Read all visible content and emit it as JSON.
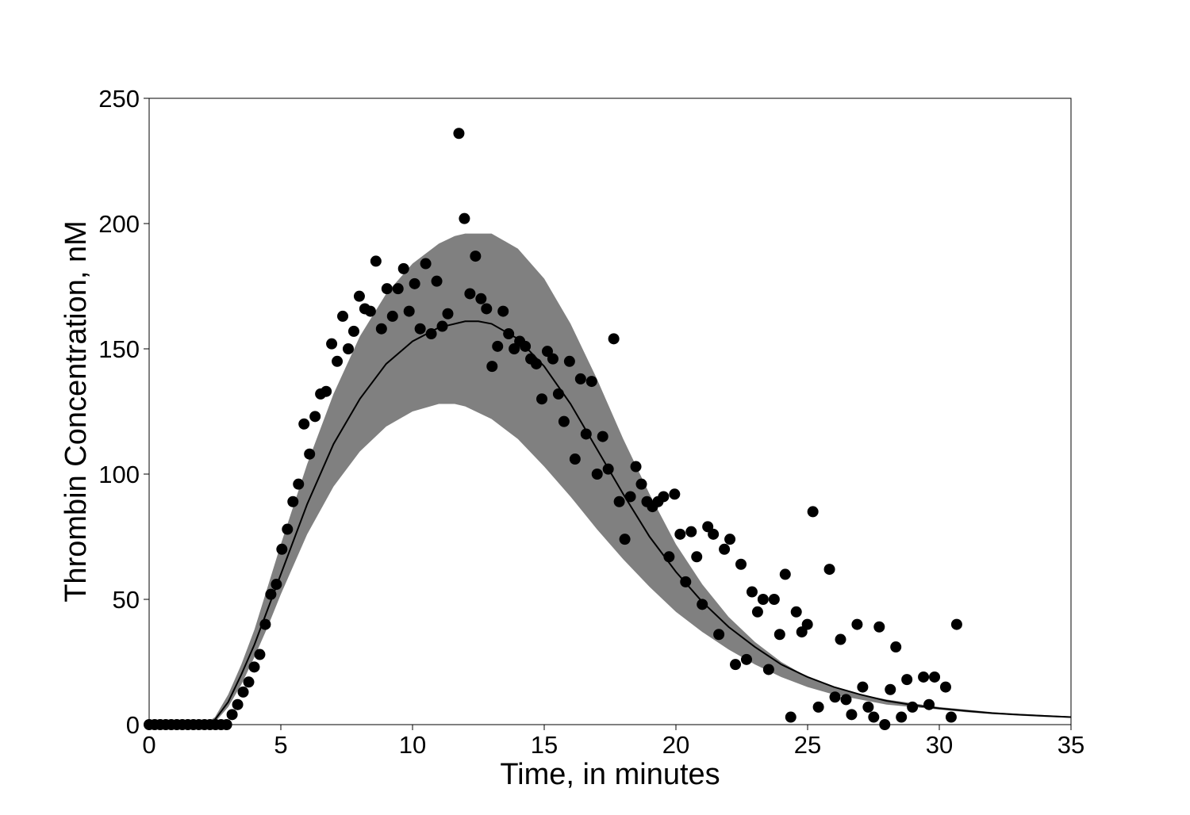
{
  "chart_data": {
    "type": "scatter",
    "title": "",
    "xlabel": "Time, in minutes",
    "ylabel": "Thrombin Concentration, nM",
    "xlim": [
      0,
      35
    ],
    "ylim": [
      0,
      250
    ],
    "xticks": [
      "0",
      "5",
      "10",
      "15",
      "20",
      "25",
      "30",
      "35"
    ],
    "yticks": [
      "0",
      "50",
      "100",
      "150",
      "200",
      "250"
    ],
    "grid": false,
    "legend": "none",
    "colors": {
      "band": "#808080",
      "line": "#000000",
      "points": "#000000"
    },
    "band": {
      "x": [
        0,
        2.1,
        2.5,
        3,
        3.5,
        4,
        4.5,
        5,
        6,
        7,
        8,
        9,
        10,
        11,
        11.6,
        12,
        13,
        14,
        15,
        16,
        17,
        18,
        19,
        20,
        21,
        22,
        23,
        24,
        25,
        26,
        27,
        28,
        29,
        30,
        31,
        32,
        33,
        34,
        35
      ],
      "upper": [
        0,
        0,
        3,
        12,
        24,
        38,
        55,
        72,
        104,
        132,
        155,
        172,
        184,
        192,
        195,
        196,
        196,
        190,
        178,
        160,
        138,
        114,
        92,
        72,
        56,
        43,
        33,
        25,
        19,
        15,
        12,
        10,
        8.5,
        7,
        6,
        5,
        4.3,
        3.8,
        3.3
      ],
      "lower": [
        0,
        0,
        1,
        7,
        16,
        27,
        39,
        52,
        76,
        95,
        109,
        119,
        125,
        128,
        128,
        127,
        122,
        114,
        103,
        91,
        78,
        66,
        55,
        45,
        37,
        30,
        24,
        19,
        15,
        12,
        10,
        8,
        7,
        6,
        5,
        4.2,
        3.6,
        3.1,
        2.7
      ]
    },
    "fit_line": {
      "x": [
        0,
        2.1,
        2.5,
        3,
        3.5,
        4,
        4.5,
        5,
        6,
        7,
        8,
        9,
        10,
        11,
        12,
        12.5,
        13,
        14,
        15,
        16,
        17,
        18,
        19,
        20,
        21,
        22,
        23,
        24,
        25,
        26,
        27,
        28,
        29,
        30,
        31,
        32,
        33,
        34,
        35
      ],
      "y": [
        0,
        0,
        2,
        9,
        20,
        32,
        46,
        60,
        88,
        112,
        130,
        144,
        153,
        158.5,
        161,
        161,
        160,
        154,
        143,
        128,
        110,
        92,
        75,
        61,
        49,
        39,
        31,
        24,
        19,
        15,
        12,
        9.5,
        7.8,
        6.5,
        5.5,
        4.6,
        4,
        3.5,
        3
      ]
    },
    "points": [
      [
        0,
        0
      ],
      [
        0.21,
        0
      ],
      [
        0.42,
        0
      ],
      [
        0.63,
        0
      ],
      [
        0.84,
        0
      ],
      [
        1.05,
        0
      ],
      [
        1.26,
        0
      ],
      [
        1.47,
        0
      ],
      [
        1.68,
        0
      ],
      [
        1.89,
        0
      ],
      [
        2.1,
        0
      ],
      [
        2.31,
        0
      ],
      [
        2.52,
        0
      ],
      [
        2.73,
        0
      ],
      [
        2.94,
        0
      ],
      [
        3.15,
        4
      ],
      [
        3.36,
        8
      ],
      [
        3.57,
        13
      ],
      [
        3.78,
        17
      ],
      [
        3.99,
        23
      ],
      [
        4.2,
        28
      ],
      [
        4.41,
        40
      ],
      [
        4.62,
        52
      ],
      [
        4.83,
        56
      ],
      [
        5.04,
        70
      ],
      [
        5.25,
        78
      ],
      [
        5.46,
        89
      ],
      [
        5.67,
        96
      ],
      [
        5.88,
        120
      ],
      [
        6.09,
        108
      ],
      [
        6.3,
        123
      ],
      [
        6.51,
        132
      ],
      [
        6.72,
        133
      ],
      [
        6.93,
        152
      ],
      [
        7.14,
        145
      ],
      [
        7.35,
        163
      ],
      [
        7.56,
        150
      ],
      [
        7.77,
        157
      ],
      [
        7.98,
        171
      ],
      [
        8.19,
        166
      ],
      [
        8.4,
        165
      ],
      [
        8.61,
        185
      ],
      [
        8.82,
        158
      ],
      [
        9.03,
        174
      ],
      [
        9.24,
        163
      ],
      [
        9.45,
        174
      ],
      [
        9.66,
        182
      ],
      [
        9.87,
        165
      ],
      [
        10.08,
        176
      ],
      [
        10.29,
        158
      ],
      [
        10.5,
        184
      ],
      [
        10.71,
        156
      ],
      [
        10.92,
        177
      ],
      [
        11.13,
        159
      ],
      [
        11.34,
        164
      ],
      [
        11.76,
        236
      ],
      [
        11.97,
        202
      ],
      [
        12.18,
        172
      ],
      [
        12.39,
        187
      ],
      [
        12.6,
        170
      ],
      [
        12.81,
        166
      ],
      [
        13.02,
        143
      ],
      [
        13.23,
        151
      ],
      [
        13.44,
        165
      ],
      [
        13.65,
        156
      ],
      [
        13.86,
        150
      ],
      [
        14.07,
        153
      ],
      [
        14.28,
        151
      ],
      [
        14.49,
        146
      ],
      [
        14.7,
        144
      ],
      [
        14.91,
        130
      ],
      [
        15.12,
        149
      ],
      [
        15.33,
        146
      ],
      [
        15.54,
        132
      ],
      [
        15.75,
        121
      ],
      [
        15.96,
        145
      ],
      [
        16.17,
        106
      ],
      [
        16.38,
        138
      ],
      [
        16.59,
        116
      ],
      [
        16.8,
        137
      ],
      [
        17.01,
        100
      ],
      [
        17.22,
        115
      ],
      [
        17.43,
        102
      ],
      [
        17.64,
        154
      ],
      [
        17.85,
        89
      ],
      [
        18.06,
        74
      ],
      [
        18.27,
        91
      ],
      [
        18.48,
        103
      ],
      [
        18.69,
        96
      ],
      [
        18.9,
        89
      ],
      [
        19.11,
        87
      ],
      [
        19.32,
        89
      ],
      [
        19.53,
        91
      ],
      [
        19.74,
        67
      ],
      [
        19.95,
        92
      ],
      [
        20.16,
        76
      ],
      [
        20.37,
        57
      ],
      [
        20.58,
        77
      ],
      [
        20.79,
        67
      ],
      [
        21.0,
        48
      ],
      [
        21.21,
        79
      ],
      [
        21.42,
        76
      ],
      [
        21.63,
        36
      ],
      [
        21.84,
        70
      ],
      [
        22.05,
        74
      ],
      [
        22.26,
        24
      ],
      [
        22.47,
        64
      ],
      [
        22.68,
        26
      ],
      [
        22.89,
        53
      ],
      [
        23.1,
        45
      ],
      [
        23.31,
        50
      ],
      [
        23.52,
        22
      ],
      [
        23.73,
        50
      ],
      [
        23.94,
        36
      ],
      [
        24.15,
        60
      ],
      [
        24.36,
        3
      ],
      [
        24.57,
        45
      ],
      [
        24.78,
        37
      ],
      [
        24.99,
        40
      ],
      [
        25.2,
        85
      ],
      [
        25.41,
        7
      ],
      [
        25.83,
        62
      ],
      [
        26.04,
        11
      ],
      [
        26.25,
        34
      ],
      [
        26.46,
        10
      ],
      [
        26.67,
        4
      ],
      [
        26.88,
        40
      ],
      [
        27.09,
        15
      ],
      [
        27.3,
        7
      ],
      [
        27.51,
        3
      ],
      [
        27.72,
        39
      ],
      [
        27.93,
        0
      ],
      [
        28.14,
        14
      ],
      [
        28.35,
        31
      ],
      [
        28.56,
        3
      ],
      [
        28.77,
        18
      ],
      [
        28.98,
        7
      ],
      [
        29.4,
        19
      ],
      [
        29.61,
        8
      ],
      [
        29.82,
        19
      ],
      [
        30.24,
        15
      ],
      [
        30.45,
        3
      ],
      [
        30.66,
        40
      ]
    ]
  }
}
